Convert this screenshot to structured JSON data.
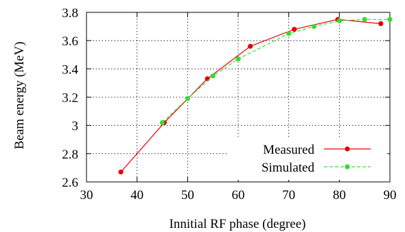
{
  "chart_data": {
    "type": "line",
    "title": "",
    "xlabel": "Innitial RF phase (degree)",
    "ylabel": "Beam energy (MeV)",
    "xlim": [
      30,
      90
    ],
    "ylim": [
      2.6,
      3.8
    ],
    "xticks": [
      30,
      40,
      50,
      60,
      70,
      80,
      90
    ],
    "yticks": [
      2.6,
      2.8,
      3.0,
      3.2,
      3.4,
      3.6,
      3.8
    ],
    "xtick_labels": [
      "30",
      "40",
      "50",
      "60",
      "70",
      "80",
      "90"
    ],
    "ytick_labels": [
      "2.6",
      "2.8",
      "3",
      "3.2",
      "3.4",
      "3.6",
      "3.8"
    ],
    "grid": true,
    "legend_position": "bottom-right",
    "series": [
      {
        "name": "Measured",
        "color": "#e60000",
        "line_style": "solid",
        "marker": "filled-circle",
        "points": [
          [
            36.8,
            2.67
          ],
          [
            45.4,
            3.02
          ],
          [
            53.9,
            3.33
          ],
          [
            62.4,
            3.56
          ],
          [
            71.1,
            3.68
          ],
          [
            79.7,
            3.75
          ],
          [
            88.2,
            3.72
          ]
        ]
      },
      {
        "name": "Simulated",
        "color": "#33dd33",
        "line_style": "dashed",
        "marker": "filled-circle",
        "points": [
          [
            45.0,
            3.02
          ],
          [
            50.0,
            3.19
          ],
          [
            55.0,
            3.35
          ],
          [
            60.0,
            3.47
          ],
          [
            70.0,
            3.65
          ],
          [
            75.0,
            3.7
          ],
          [
            80.0,
            3.74
          ],
          [
            85.0,
            3.75
          ],
          [
            90.0,
            3.75
          ]
        ]
      }
    ]
  }
}
